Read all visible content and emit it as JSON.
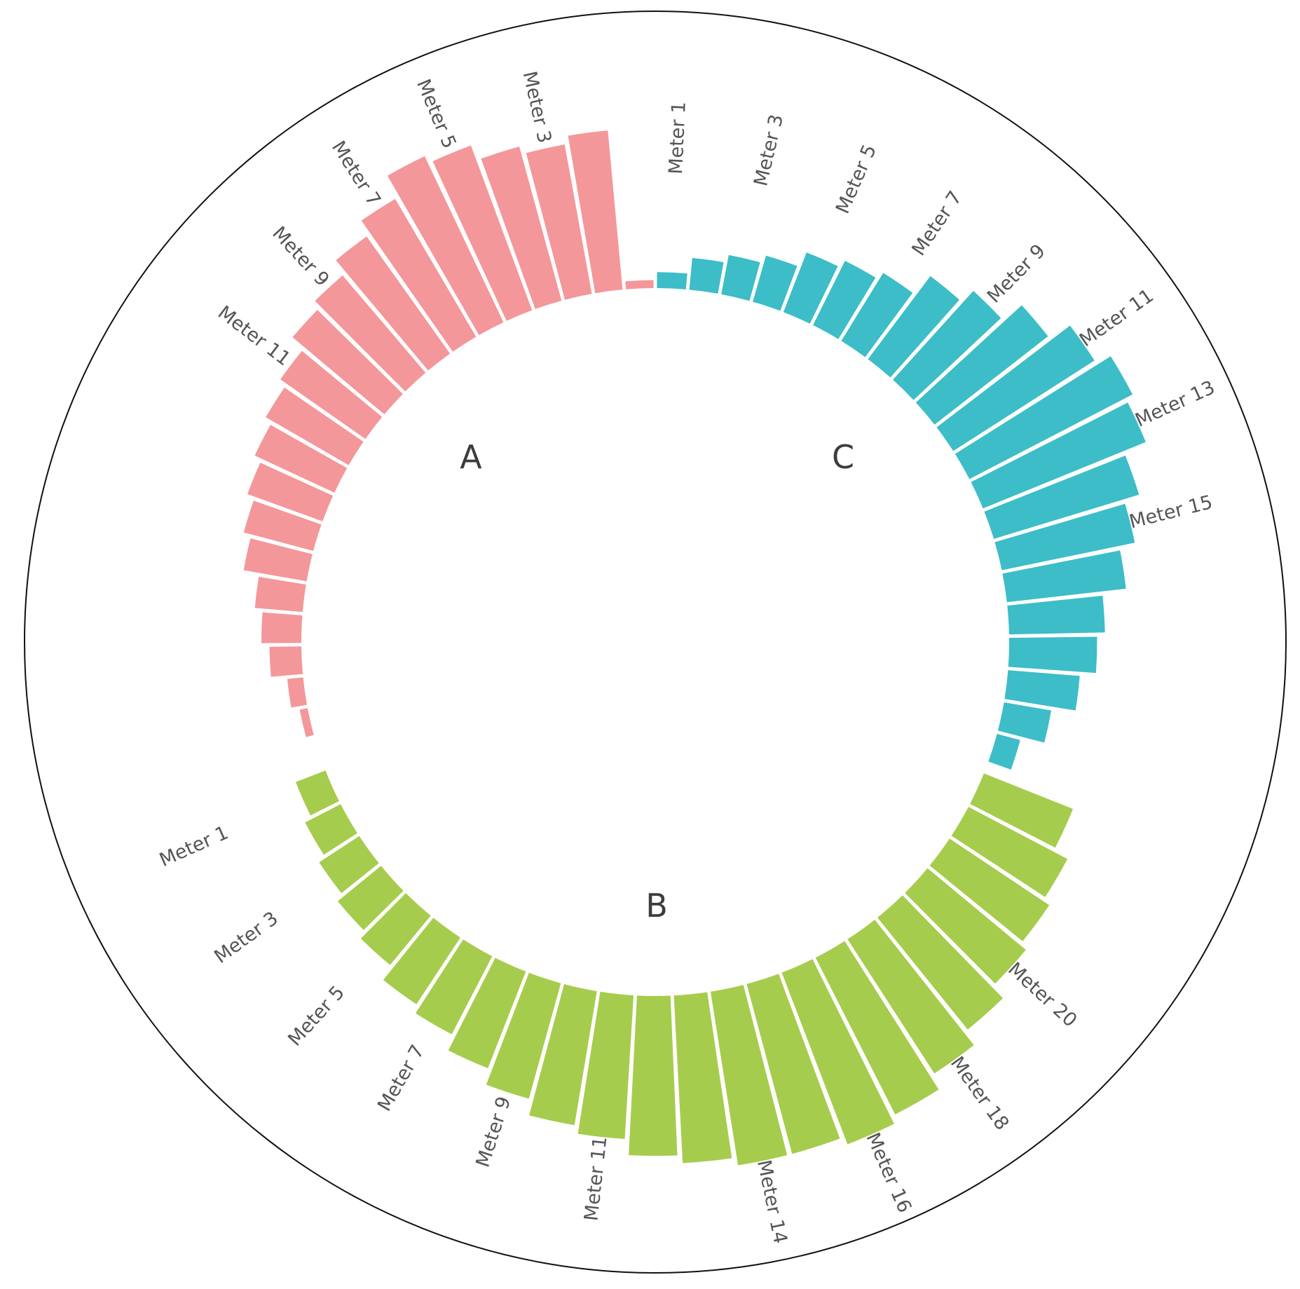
{
  "chart_data": {
    "type": "bar",
    "subtype": "circular-grouped-bar",
    "title": "",
    "xlabel": "",
    "ylabel": "",
    "grid": false,
    "legend": "none",
    "groups": [
      {
        "name": "A",
        "color": "#F4979A",
        "categories": [
          "Meter 1",
          "Meter 2",
          "Meter 3",
          "Meter 4",
          "Meter 5",
          "Meter 6",
          "Meter 7",
          "Meter 8",
          "Meter 9",
          "Meter 10",
          "Meter 11",
          "Meter 12",
          "Meter 13",
          "Meter 14",
          "Meter 15",
          "Meter 16",
          "Meter 17",
          "Meter 18",
          "Meter 19",
          "Meter 20",
          "Meter 21"
        ],
        "values": [
          1,
          20,
          19,
          20,
          22,
          23,
          20,
          18,
          16,
          15,
          13,
          12,
          11,
          10,
          9,
          8,
          6,
          5,
          4,
          2,
          1
        ],
        "tick_labels": [
          "Meter 3",
          "Meter 5",
          "Meter 7",
          "Meter 9",
          "Meter 11"
        ]
      },
      {
        "name": "B",
        "color": "#A6CC4D",
        "categories": [
          "Meter 1",
          "Meter 2",
          "Meter 3",
          "Meter 4",
          "Meter 5",
          "Meter 6",
          "Meter 7",
          "Meter 8",
          "Meter 9",
          "Meter 10",
          "Meter 11",
          "Meter 12",
          "Meter 13",
          "Meter 14",
          "Meter 15",
          "Meter 16",
          "Meter 17",
          "Meter 18",
          "Meter 19",
          "Meter 20",
          "Meter 21",
          "Meter 22",
          "Meter 23"
        ],
        "values": [
          4,
          5,
          6,
          7,
          8,
          10,
          11,
          13,
          15,
          17,
          18,
          20,
          21,
          22,
          22,
          23,
          22,
          20,
          18,
          16,
          15,
          14,
          12
        ],
        "tick_labels": [
          "Meter 1",
          "Meter 3",
          "Meter 5",
          "Meter 7",
          "Meter 9",
          "Meter 11",
          "Meter 14",
          "Meter 16",
          "Meter 18",
          "Meter 20"
        ]
      },
      {
        "name": "C",
        "color": "#3DBDC7",
        "categories": [
          "Meter 1",
          "Meter 2",
          "Meter 3",
          "Meter 4",
          "Meter 5",
          "Meter 6",
          "Meter 7",
          "Meter 8",
          "Meter 9",
          "Meter 10",
          "Meter 11",
          "Meter 12",
          "Meter 13",
          "Meter 14",
          "Meter 15",
          "Meter 16",
          "Meter 17",
          "Meter 18",
          "Meter 19",
          "Meter 20",
          "Meter 21"
        ],
        "values": [
          2,
          4,
          5,
          6,
          8,
          9,
          10,
          13,
          15,
          18,
          21,
          23,
          22,
          19,
          17,
          15,
          12,
          11,
          9,
          6,
          3
        ],
        "tick_labels": [
          "Meter 1",
          "Meter 3",
          "Meter 5",
          "Meter 7",
          "Meter 9",
          "Meter 11",
          "Meter 13",
          "Meter 15"
        ]
      }
    ]
  }
}
